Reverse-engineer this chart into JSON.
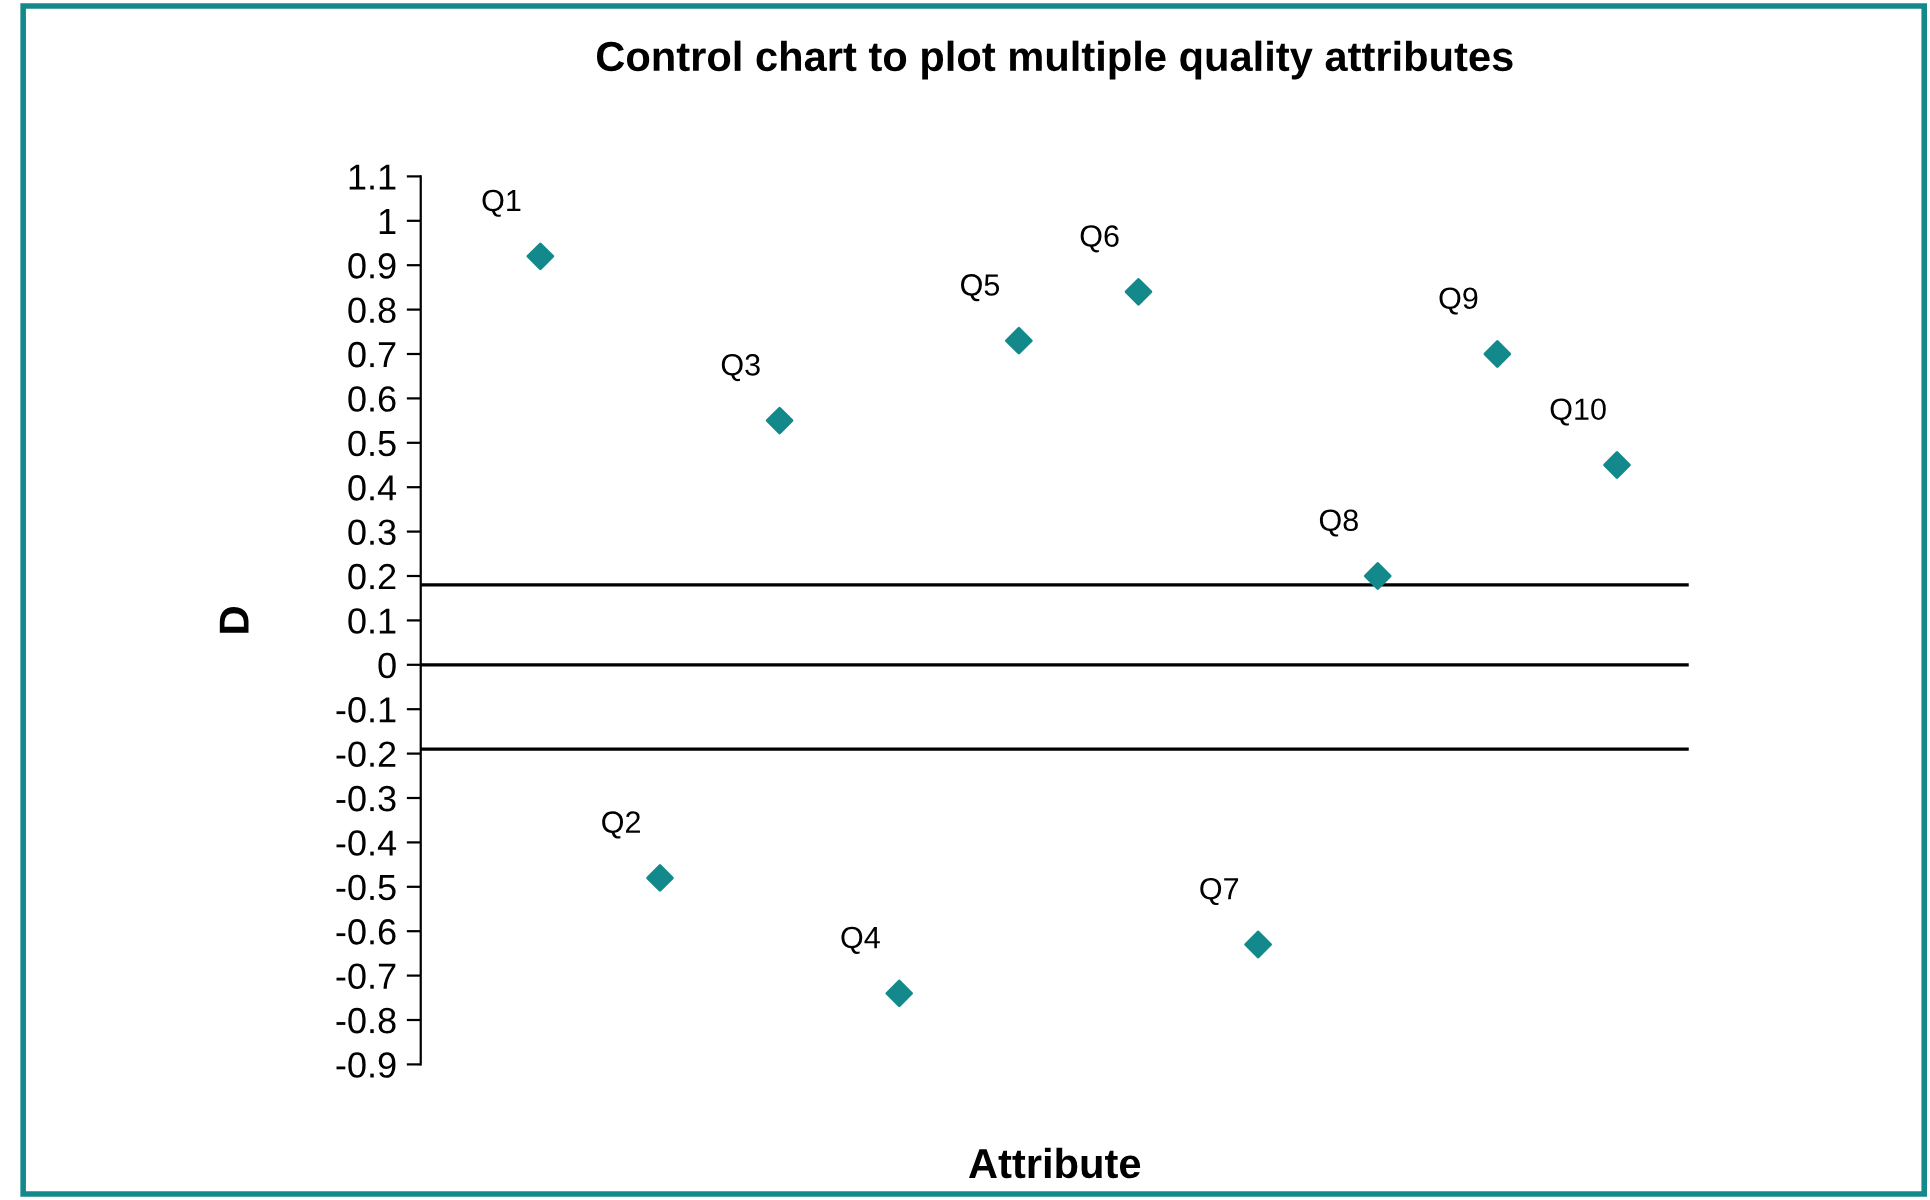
{
  "chart_data": {
    "type": "scatter",
    "title": "Control chart to plot multiple quality attributes",
    "xlabel": "Attribute",
    "ylabel": "D",
    "categories": [
      null,
      null,
      null,
      null,
      null,
      null,
      null,
      null,
      null,
      null
    ],
    "series": [
      {
        "color": "#13898b",
        "values": [
          0.92,
          -0.48,
          0.55,
          -0.74,
          0.73,
          0.84,
          -0.63,
          0.2,
          0.7,
          0.45
        ],
        "value_labels": [
          "Q1",
          "Q2",
          "Q3",
          "Q4",
          "Q5",
          "Q6",
          "Q7",
          "Q8",
          "Q9",
          "Q10"
        ]
      }
    ],
    "marker": "diamond",
    "ylim": [
      -0.9,
      1.1
    ],
    "yticks": [
      {
        "value": -0.9,
        "label": "-0.9"
      },
      {
        "value": -0.8,
        "label": "-0.8"
      },
      {
        "value": -0.7,
        "label": "-0.7"
      },
      {
        "value": -0.6,
        "label": "-0.6"
      },
      {
        "value": -0.5,
        "label": "-0.5"
      },
      {
        "value": -0.4,
        "label": "-0.4"
      },
      {
        "value": -0.3,
        "label": "-0.3"
      },
      {
        "value": -0.2,
        "label": "-0.2"
      },
      {
        "value": -0.1,
        "label": "-0.1"
      },
      0,
      0.1,
      0.2,
      0.3,
      0.4,
      0.5,
      0.6,
      0.7,
      0.8,
      0.9,
      1,
      1.1
    ],
    "tick_labels": "y",
    "ref_lines": [
      {
        "axis": "y",
        "value": 0.18,
        "color": "#000000"
      },
      {
        "axis": "y",
        "value": 0,
        "color": "#000000"
      },
      {
        "axis": "y",
        "value": -0.19,
        "color": "#000000"
      }
    ]
  }
}
